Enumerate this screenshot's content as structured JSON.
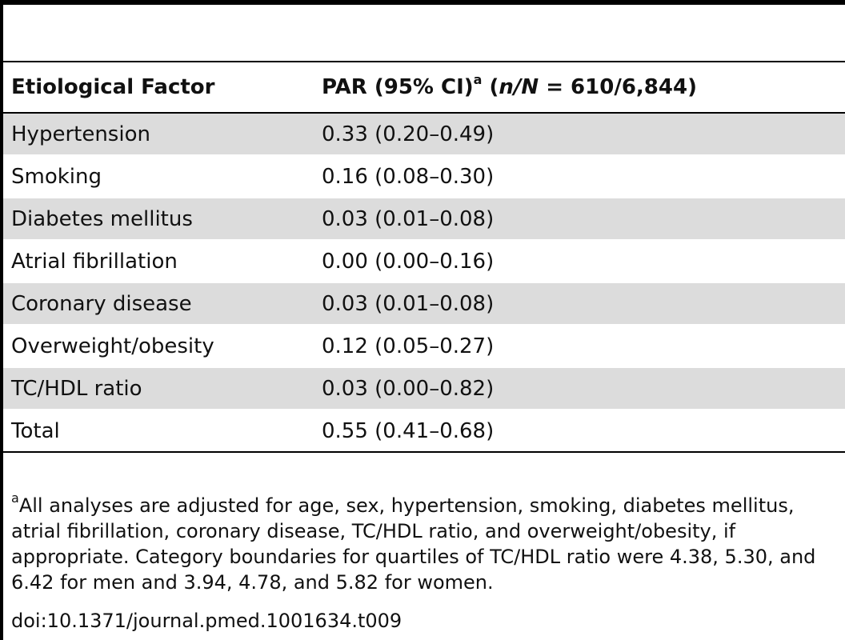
{
  "table": {
    "headers": {
      "factor": "Etiological Factor",
      "par_prefix": "PAR (95% CI)",
      "par_sup": "a",
      "par_open": " (",
      "par_italic": "n/N",
      "par_rest": " = 610/6,844)"
    },
    "rows": [
      {
        "factor": "Hypertension",
        "par": "0.33 (0.20–0.49)"
      },
      {
        "factor": "Smoking",
        "par": "0.16 (0.08–0.30)"
      },
      {
        "factor": "Diabetes mellitus",
        "par": "0.03 (0.01–0.08)"
      },
      {
        "factor": "Atrial fibrillation",
        "par": "0.00 (0.00–0.16)"
      },
      {
        "factor": "Coronary disease",
        "par": "0.03 (0.01–0.08)"
      },
      {
        "factor": "Overweight/obesity",
        "par": "0.12 (0.05–0.27)"
      },
      {
        "factor": "TC/HDL ratio",
        "par": "0.03 (0.00–0.82)"
      },
      {
        "factor": "Total",
        "par": "0.55 (0.41–0.68)"
      }
    ]
  },
  "footnote": {
    "marker": "a",
    "text": "All analyses are adjusted for age, sex, hypertension, smoking, diabetes mellitus, atrial fibrillation, coronary disease, TC/HDL ratio, and overweight/obesity, if appropriate. Category boundaries for quartiles of TC/HDL ratio were 4.38, 5.30, and 6.42 for men and 3.94, 4.78, and 5.82 for women."
  },
  "doi": "doi:10.1371/journal.pmed.1001634.t009"
}
